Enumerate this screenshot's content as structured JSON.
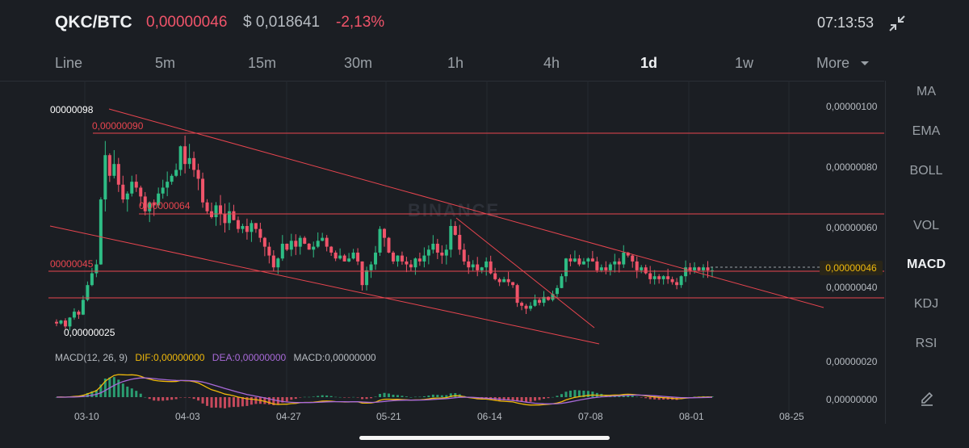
{
  "header": {
    "pair": "QKC/BTC",
    "price_btc": "0,00000046",
    "price_usd": "$ 0,018641",
    "change": "-2,13%",
    "time": "07:13:53"
  },
  "timeframes": [
    {
      "label": "Line",
      "active": false
    },
    {
      "label": "5m",
      "active": false
    },
    {
      "label": "15m",
      "active": false
    },
    {
      "label": "30m",
      "active": false
    },
    {
      "label": "1h",
      "active": false
    },
    {
      "label": "4h",
      "active": false
    },
    {
      "label": "1d",
      "active": true
    },
    {
      "label": "1w",
      "active": false
    },
    {
      "label": "More",
      "active": false
    }
  ],
  "indicators": [
    {
      "label": "MA",
      "active": false
    },
    {
      "label": "EMA",
      "active": false
    },
    {
      "label": "BOLL",
      "active": false
    },
    {
      "label": "VOL",
      "active": false
    },
    {
      "label": "MACD",
      "active": true
    },
    {
      "label": "KDJ",
      "active": false
    },
    {
      "label": "RSI",
      "active": false
    }
  ],
  "colors": {
    "up": "#2ebd85",
    "down": "#f0546a",
    "accent": "#f0b90b",
    "trendline": "#e8454f",
    "dif": "#f0b90b",
    "dea": "#a86ad8"
  },
  "chart": {
    "watermark": "BINANCE",
    "y_axis_labels": [
      "0,00000100",
      "0,00000080",
      "0,00000060",
      "0,00000040",
      "0,00000020",
      "0,00000000"
    ],
    "current_price_tag": "0,00000046",
    "x_axis_labels": [
      "03-10",
      "04-03",
      "04-27",
      "05-21",
      "06-14",
      "07-08",
      "08-01",
      "08-25"
    ],
    "price_labels": {
      "high": "00000098",
      "level_090": "0,00000090",
      "level_064": "0,00000064",
      "level_045": "00000045",
      "low": "0,00000025"
    },
    "macd_legend": {
      "title": "MACD(12, 26, 9)",
      "dif": "DIF:0,00000000",
      "dea": "DEA:0,00000000",
      "macd": "MACD:0,00000000"
    }
  },
  "chart_data": {
    "type": "candlestick",
    "y_range": [
      2e-07,
      1.02e-06
    ],
    "closes": [
      2.8e-07,
      2.9e-07,
      2.7e-07,
      3e-07,
      3.2e-07,
      3.1e-07,
      3.6e-07,
      4.1e-07,
      4.5e-07,
      4.8e-07,
      7e-07,
      8.5e-07,
      7.8e-07,
      8.2e-07,
      7.5e-07,
      7e-07,
      7.2e-07,
      7.6e-07,
      7.4e-07,
      7.1e-07,
      6.6e-07,
      6.9e-07,
      6.8e-07,
      7.2e-07,
      7.4e-07,
      7.6e-07,
      7.8e-07,
      8e-07,
      8.8e-07,
      8.2e-07,
      8.4e-07,
      8e-07,
      7.7e-07,
      6.9e-07,
      6.6e-07,
      6.4e-07,
      6.8e-07,
      6.5e-07,
      6.2e-07,
      6.6e-07,
      6.3e-07,
      6e-07,
      6.1e-07,
      5.9e-07,
      6.2e-07,
      6e-07,
      5.7e-07,
      5.4e-07,
      5.1e-07,
      4.7e-07,
      5e-07,
      5.5e-07,
      5.3e-07,
      5.6e-07,
      5.4e-07,
      5.7e-07,
      5.5e-07,
      5.3e-07,
      5.4e-07,
      5.6e-07,
      5.7e-07,
      5.4e-07,
      5.2e-07,
      5e-07,
      5.1e-07,
      4.9e-07,
      5e-07,
      5.2e-07,
      4.9e-07,
      4.1e-07,
      4.6e-07,
      4.8e-07,
      5.2e-07,
      6e-07,
      5.7e-07,
      5.2e-07,
      4.9e-07,
      5.1e-07,
      4.9e-07,
      4.8e-07,
      4.7e-07,
      5e-07,
      4.9e-07,
      5.1e-07,
      5.3e-07,
      5.5e-07,
      5.2e-07,
      5.1e-07,
      5.3e-07,
      6.1e-07,
      5.8e-07,
      5.3e-07,
      4.9e-07,
      4.7e-07,
      4.8e-07,
      4.6e-07,
      4.7e-07,
      4.9e-07,
      4.5e-07,
      4.3e-07,
      4.2e-07,
      4.3e-07,
      4.2e-07,
      4.1e-07,
      3.5e-07,
      3.4e-07,
      3.3e-07,
      3.4e-07,
      3.6e-07,
      3.5e-07,
      3.7e-07,
      3.6e-07,
      3.8e-07,
      4e-07,
      4.4e-07,
      5e-07,
      4.9e-07,
      5e-07,
      4.8e-07,
      4.9e-07,
      5e-07,
      4.9e-07,
      4.6e-07,
      4.7e-07,
      4.6e-07,
      4.8e-07,
      4.9e-07,
      4.8e-07,
      5.2e-07,
      5.1e-07,
      4.9e-07,
      4.6e-07,
      4.7e-07,
      4.5e-07,
      4.3e-07,
      4.4e-07,
      4.3e-07,
      4.4e-07,
      4.3e-07,
      4.2e-07,
      4.1e-07,
      4.4e-07,
      4.7e-07,
      4.6e-07,
      4.7e-07,
      4.6e-07,
      4.7e-07,
      4.6e-07,
      4.6e-07
    ]
  }
}
